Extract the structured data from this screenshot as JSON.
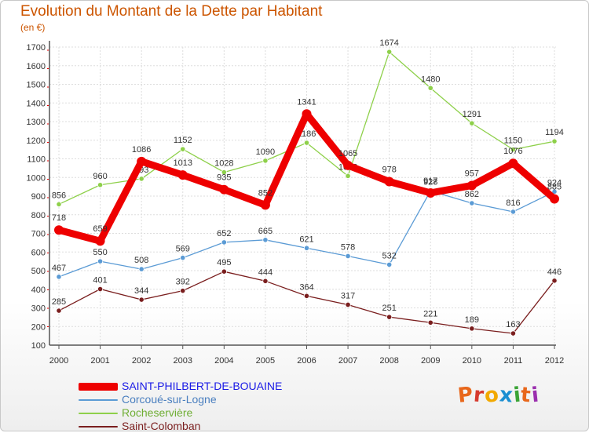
{
  "title": "Evolution du Montant de la Dette par Habitant",
  "unit": "(en €)",
  "logo_text": "Proxiti",
  "logo_colors": [
    "#e8671b",
    "#d63a2e",
    "#f2a900",
    "#1a8ed1",
    "#3aa335",
    "#e8671b",
    "#9b2fae"
  ],
  "chart_data": {
    "type": "line",
    "x": [
      "2000",
      "2001",
      "2002",
      "2003",
      "2004",
      "2005",
      "2006",
      "2007",
      "2008",
      "2009",
      "2010",
      "2011",
      "2012"
    ],
    "ylim": [
      100,
      1700
    ],
    "yticks": [
      100,
      200,
      300,
      400,
      500,
      600,
      700,
      800,
      900,
      1000,
      1100,
      1200,
      1300,
      1400,
      1500,
      1600,
      1700
    ],
    "grid": true,
    "legend_position": "bottom-left",
    "series": [
      {
        "name": "SAINT-PHILBERT-DE-BOUAINE",
        "color": "#ee0000",
        "label_color": "#1a1ae6",
        "values": [
          718,
          659,
          1086,
          1013,
          935,
          852,
          1341,
          1065,
          978,
          917,
          957,
          1076,
          885
        ]
      },
      {
        "name": "Corcoué-sur-Logne",
        "color": "#5b9bd5",
        "label_color": "#4a7fbf",
        "values": [
          467,
          550,
          508,
          569,
          652,
          665,
          621,
          578,
          532,
          928,
          862,
          816,
          924
        ]
      },
      {
        "name": "Rocheservière",
        "color": "#8ed04a",
        "label_color": "#6fae34",
        "values": [
          856,
          960,
          993,
          1152,
          1028,
          1090,
          1186,
          1008,
          1674,
          1480,
          1291,
          1150,
          1194
        ]
      },
      {
        "name": "Saint-Colomban",
        "color": "#7a1e1e",
        "label_color": "#7a1e1e",
        "values": [
          285,
          401,
          344,
          392,
          495,
          444,
          364,
          317,
          251,
          221,
          189,
          163,
          446
        ]
      }
    ]
  }
}
